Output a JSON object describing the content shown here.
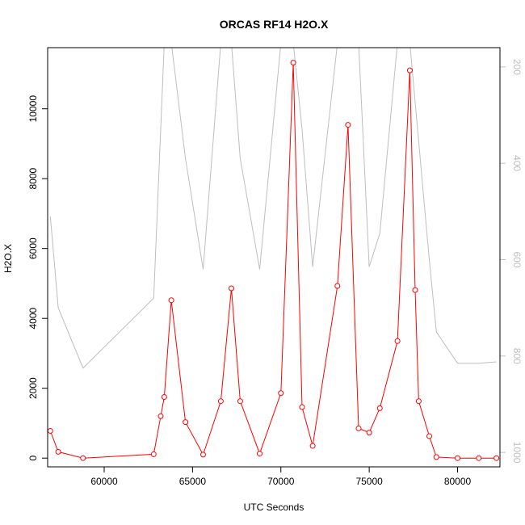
{
  "chart_data": {
    "type": "line",
    "title": "ORCAS RF14 H2O.X",
    "xlabel": "UTC Seconds",
    "ylabel": "H2O.X",
    "xlim": [
      56800,
      82400
    ],
    "ylim": [
      -250,
      11750
    ],
    "y2lim": [
      1030,
      160
    ],
    "x_ticks": [
      60000,
      65000,
      70000,
      75000,
      80000
    ],
    "y_ticks": [
      0,
      2000,
      4000,
      6000,
      8000,
      10000
    ],
    "y2_ticks": [
      200,
      400,
      600,
      800,
      1000
    ],
    "grid": false,
    "legend": "none",
    "series": [
      {
        "axis": "left",
        "color": "#ff0000",
        "markers": "open-circle",
        "points": [
          [
            56950,
            780
          ],
          [
            57400,
            180
          ],
          [
            58800,
            0
          ],
          [
            62800,
            110
          ],
          [
            63200,
            1200
          ],
          [
            63400,
            1750
          ],
          [
            63800,
            4520
          ],
          [
            64600,
            1030
          ],
          [
            65600,
            100
          ],
          [
            66600,
            1630
          ],
          [
            67200,
            4860
          ],
          [
            67700,
            1630
          ],
          [
            68800,
            130
          ],
          [
            70000,
            1860
          ],
          [
            70700,
            11320
          ],
          [
            71200,
            1460
          ],
          [
            71800,
            350
          ],
          [
            73200,
            4930
          ],
          [
            73800,
            9540
          ],
          [
            74400,
            850
          ],
          [
            75000,
            730
          ],
          [
            75600,
            1430
          ],
          [
            76600,
            3350
          ],
          [
            77300,
            11100
          ],
          [
            77600,
            4810
          ],
          [
            77800,
            1630
          ],
          [
            78400,
            630
          ],
          [
            78800,
            30
          ],
          [
            80000,
            0
          ],
          [
            81200,
            0
          ],
          [
            82200,
            0
          ]
        ]
      },
      {
        "axis": "right",
        "color": "#bebebe",
        "markers": "none",
        "points": [
          [
            56950,
            510
          ],
          [
            57400,
            700
          ],
          [
            58800,
            825
          ],
          [
            62800,
            680
          ],
          [
            63400,
            150
          ],
          [
            63800,
            150
          ],
          [
            64600,
            390
          ],
          [
            65600,
            620
          ],
          [
            66600,
            150
          ],
          [
            67200,
            150
          ],
          [
            67700,
            390
          ],
          [
            68800,
            620
          ],
          [
            70000,
            150
          ],
          [
            70700,
            150
          ],
          [
            71200,
            330
          ],
          [
            71800,
            615
          ],
          [
            73200,
            150
          ],
          [
            73800,
            150
          ],
          [
            74400,
            150
          ],
          [
            75000,
            615
          ],
          [
            75600,
            545
          ],
          [
            76600,
            150
          ],
          [
            77300,
            150
          ],
          [
            78400,
            600
          ],
          [
            78800,
            750
          ],
          [
            80000,
            815
          ],
          [
            81200,
            815
          ],
          [
            82200,
            812
          ]
        ]
      }
    ]
  }
}
